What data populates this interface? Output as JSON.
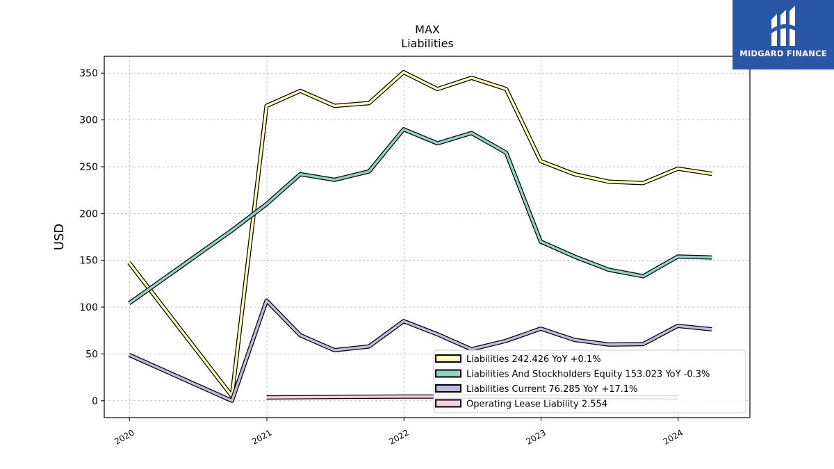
{
  "brand": {
    "name": "MIDGARD FINANCE",
    "bg": "#2a56a8"
  },
  "chart_data": {
    "type": "line",
    "title": "MAX",
    "subtitle": "Liabilities",
    "xlabel": "",
    "ylabel": "USD",
    "ylim": [
      -18,
      368
    ],
    "xlim": [
      "2019-10-26",
      "2024-07-10"
    ],
    "yticks": [
      0,
      50,
      100,
      150,
      200,
      250,
      300,
      350
    ],
    "xticks": [
      "2020-01-01",
      "2021-01-01",
      "2022-01-01",
      "2023-01-01",
      "2024-01-01"
    ],
    "xtick_labels": [
      "2020",
      "2021",
      "2022",
      "2023",
      "2024"
    ],
    "grid": true,
    "legend_position": "lower-right",
    "series": [
      {
        "name": "Liabilities",
        "legend_label": "Liabilities  242.426 YoY +0.1%",
        "color": "#ffffb3",
        "points": [
          [
            "2019-12-31",
            147.5
          ],
          [
            "2020-09-30",
            5
          ],
          [
            "2020-12-31",
            315
          ],
          [
            "2021-03-31",
            331
          ],
          [
            "2021-06-30",
            315
          ],
          [
            "2021-09-30",
            318
          ],
          [
            "2021-12-31",
            351
          ],
          [
            "2022-03-31",
            333
          ],
          [
            "2022-06-30",
            345
          ],
          [
            "2022-09-30",
            333
          ],
          [
            "2022-12-31",
            256
          ],
          [
            "2023-03-31",
            242
          ],
          [
            "2023-06-30",
            234
          ],
          [
            "2023-09-30",
            232.5
          ],
          [
            "2023-12-31",
            248
          ],
          [
            "2024-03-31",
            242.4
          ]
        ]
      },
      {
        "name": "Liabilities And Stockholders Equity",
        "legend_label": "Liabilities And Stockholders Equity  153.023 YoY -0.3%",
        "color": "#8dd3c7",
        "points": [
          [
            "2019-12-31",
            104
          ],
          [
            "2020-09-30",
            182
          ],
          [
            "2020-12-31",
            210
          ],
          [
            "2021-03-31",
            242
          ],
          [
            "2021-06-30",
            236
          ],
          [
            "2021-09-30",
            245
          ],
          [
            "2021-12-31",
            290
          ],
          [
            "2022-03-31",
            275
          ],
          [
            "2022-06-30",
            286
          ],
          [
            "2022-09-30",
            265
          ],
          [
            "2022-12-31",
            170
          ],
          [
            "2023-03-31",
            154
          ],
          [
            "2023-06-30",
            140
          ],
          [
            "2023-09-30",
            133
          ],
          [
            "2023-12-31",
            154
          ],
          [
            "2024-03-31",
            153
          ]
        ]
      },
      {
        "name": "Liabilities Current",
        "legend_label": "Liabilities Current  76.285 YoY +17.1%",
        "color": "#bebada",
        "points": [
          [
            "2019-12-31",
            49
          ],
          [
            "2020-09-30",
            0
          ],
          [
            "2020-12-31",
            107
          ],
          [
            "2021-03-31",
            70
          ],
          [
            "2021-06-30",
            54
          ],
          [
            "2021-09-30",
            58
          ],
          [
            "2021-12-31",
            85
          ],
          [
            "2022-03-31",
            71
          ],
          [
            "2022-06-30",
            55
          ],
          [
            "2022-09-30",
            64
          ],
          [
            "2022-12-31",
            77
          ],
          [
            "2023-03-31",
            65
          ],
          [
            "2023-06-30",
            60
          ],
          [
            "2023-09-30",
            60.5
          ],
          [
            "2023-12-31",
            80
          ],
          [
            "2024-03-31",
            76.3
          ]
        ]
      },
      {
        "name": "Operating Lease Liability",
        "legend_label": "Operating Lease Liability  2.554",
        "color": "#fccde5",
        "points": [
          [
            "2020-12-31",
            3.5
          ],
          [
            "2021-12-31",
            4.5
          ],
          [
            "2022-12-31",
            4.5
          ],
          [
            "2023-12-31",
            3.5
          ]
        ]
      }
    ]
  }
}
